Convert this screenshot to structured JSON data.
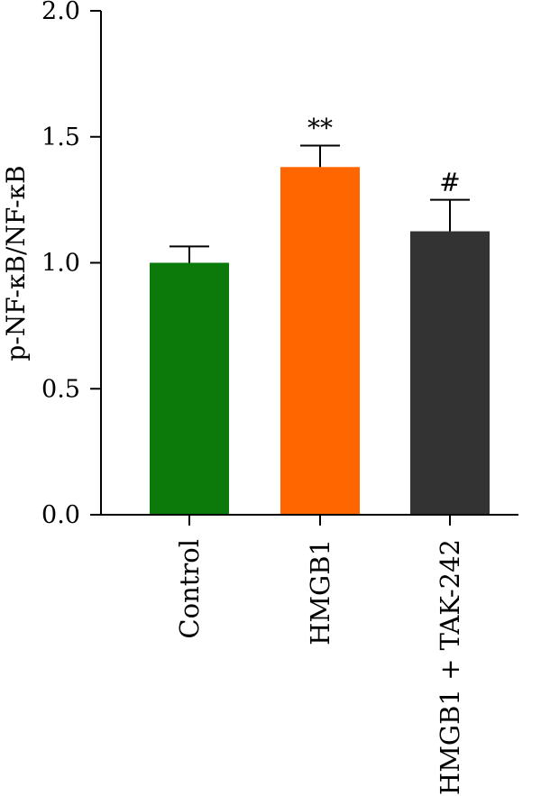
{
  "chart_data": {
    "type": "bar",
    "categories": [
      "Control",
      "HMGB1",
      "HMGB1 + TAK-242"
    ],
    "values": [
      1.0,
      1.38,
      1.125
    ],
    "error": [
      0.065,
      0.085,
      0.125
    ],
    "significance": [
      "",
      "**",
      "#"
    ],
    "colors": [
      "#0b7a0b",
      "#ff6600",
      "#333333"
    ],
    "ylabel": "p-NF-κB/NF-κB",
    "xlabel": "",
    "ylim": [
      0,
      2.0
    ],
    "yticks": [
      0.0,
      0.5,
      1.0,
      1.5,
      2.0
    ],
    "ytick_labels": [
      "0.0",
      "0.5",
      "1.0",
      "1.5",
      "2.0"
    ],
    "grid": false,
    "legend": "none"
  }
}
